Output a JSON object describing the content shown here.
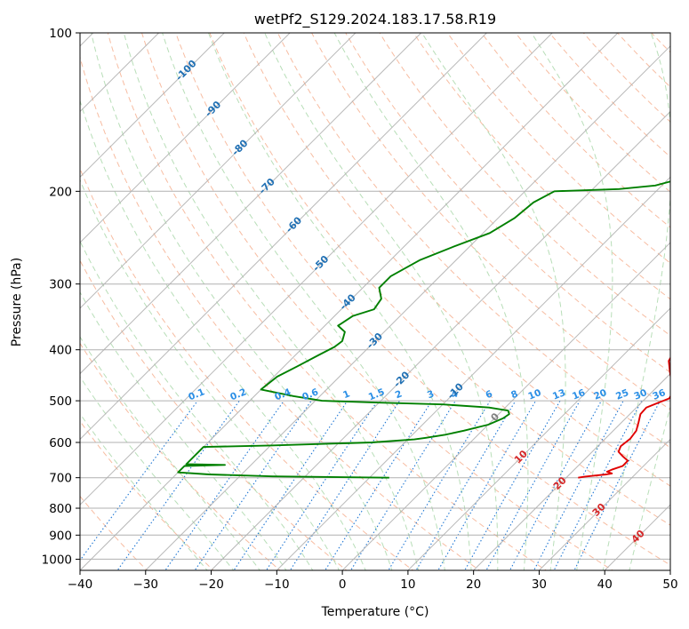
{
  "chart_data": {
    "type": "line",
    "subtype": "skew-t log-p",
    "title": "wetPf2_S129.2024.183.17.58.R19",
    "xlabel": "Temperature (°C)",
    "ylabel": "Pressure (hPa)",
    "xlim": [
      -40,
      50
    ],
    "ylim": [
      1050,
      100
    ],
    "y_scale": "log",
    "grid": true,
    "x_ticks": [
      "−40",
      "−30",
      "−20",
      "−10",
      "0",
      "10",
      "20",
      "30",
      "40",
      "50"
    ],
    "y_ticks": [
      "100",
      "200",
      "300",
      "400",
      "500",
      "600",
      "700",
      "800",
      "900",
      "1000"
    ],
    "colors": {
      "temperature": "#e00000",
      "dewpoint": "#008000",
      "dry_adiabat": "#f4a582",
      "moist_adiabat": "#a6d6a6",
      "mixing_ratio": "#1f77d4",
      "isotherm_label": "#2070b4",
      "grid": "#b0b0b0"
    },
    "isotherm_labels": [
      "-100",
      "-90",
      "-80",
      "-70",
      "-60",
      "-50",
      "-40",
      "-30",
      "-20",
      "-10",
      "0",
      "10",
      "20",
      "30",
      "40"
    ],
    "mixing_ratio_labels": [
      "0.1",
      "0.2",
      "0.4",
      "0.6",
      "1",
      "1.5",
      "2",
      "3",
      "4",
      "6",
      "8",
      "10",
      "13",
      "16",
      "20",
      "25",
      "30",
      "36"
    ],
    "series": [
      {
        "key": "temperature",
        "points": [
          [
            700,
            21.8
          ],
          [
            697,
            22.6
          ],
          [
            693,
            24.3
          ],
          [
            690,
            25.6
          ],
          [
            687,
            26.3
          ],
          [
            682,
            25.3
          ],
          [
            675,
            25.8
          ],
          [
            665,
            26.8
          ],
          [
            650,
            26.8
          ],
          [
            638,
            25.4
          ],
          [
            625,
            24.0
          ],
          [
            610,
            23.5
          ],
          [
            590,
            23.8
          ],
          [
            570,
            23.5
          ],
          [
            550,
            22.6
          ],
          [
            530,
            21.6
          ],
          [
            515,
            21.5
          ],
          [
            505,
            22.5
          ],
          [
            495,
            23.6
          ],
          [
            480,
            23.2
          ],
          [
            460,
            21.4
          ],
          [
            440,
            19.6
          ],
          [
            420,
            17.8
          ],
          [
            400,
            17.1
          ],
          [
            385,
            17.3
          ],
          [
            370,
            17.9
          ],
          [
            355,
            16.9
          ],
          [
            340,
            15.2
          ],
          [
            320,
            14.4
          ],
          [
            300,
            13.8
          ],
          [
            280,
            12.6
          ],
          [
            265,
            10.6
          ],
          [
            250,
            8.3
          ],
          [
            235,
            6.9
          ],
          [
            220,
            5.7
          ],
          [
            205,
            3.3
          ],
          [
            190,
            1.2
          ],
          [
            175,
            -0.3
          ],
          [
            160,
            -1.4
          ],
          [
            145,
            -2.4
          ],
          [
            135,
            -3.3
          ],
          [
            125,
            -4.6
          ],
          [
            118,
            -5.6
          ],
          [
            112,
            -6.3
          ],
          [
            107,
            -6.3
          ],
          [
            103,
            -4.9
          ],
          [
            101,
            -3.5
          ]
        ]
      },
      {
        "key": "dewpoint",
        "points": [
          [
            700,
            -7.0
          ],
          [
            696,
            -25.0
          ],
          [
            690,
            -35.0
          ],
          [
            684,
            -40.0
          ],
          [
            665,
            -40.0
          ],
          [
            662,
            -34.0
          ],
          [
            660,
            -40.0
          ],
          [
            612,
            -40.0
          ],
          [
            608,
            -30.0
          ],
          [
            600,
            -15.0
          ],
          [
            592,
            -9.0
          ],
          [
            588,
            -7.5
          ],
          [
            580,
            -5.0
          ],
          [
            570,
            -2.8
          ],
          [
            555,
            0.0
          ],
          [
            540,
            1.3
          ],
          [
            530,
            1.6
          ],
          [
            522,
            0.9
          ],
          [
            515,
            -2.5
          ],
          [
            508,
            -10.0
          ],
          [
            504,
            -20.0
          ],
          [
            500,
            -29.0
          ],
          [
            490,
            -34.0
          ],
          [
            476,
            -40.0
          ],
          [
            450,
            -39.5
          ],
          [
            430,
            -38.0
          ],
          [
            410,
            -36.5
          ],
          [
            395,
            -35.3
          ],
          [
            385,
            -35.0
          ],
          [
            370,
            -36.0
          ],
          [
            360,
            -38.0
          ],
          [
            345,
            -37.2
          ],
          [
            335,
            -35.0
          ],
          [
            320,
            -35.5
          ],
          [
            305,
            -37.5
          ],
          [
            290,
            -37.5
          ],
          [
            270,
            -35.5
          ],
          [
            255,
            -32.5
          ],
          [
            240,
            -29.0
          ],
          [
            225,
            -27.5
          ],
          [
            210,
            -27.0
          ],
          [
            200,
            -25.5
          ],
          [
            198,
            -16.0
          ],
          [
            195,
            -11.0
          ],
          [
            190,
            -8.5
          ],
          [
            180,
            -7.0
          ],
          [
            170,
            -6.5
          ],
          [
            160,
            -6.5
          ],
          [
            150,
            -6.3
          ],
          [
            140,
            -6.6
          ],
          [
            130,
            -7.0
          ],
          [
            122,
            -7.2
          ],
          [
            115,
            -7.8
          ],
          [
            110,
            -8.5
          ],
          [
            106,
            -8.5
          ],
          [
            103,
            -6.5
          ],
          [
            101,
            -4.5
          ],
          [
            100,
            -2.9
          ]
        ]
      }
    ]
  }
}
